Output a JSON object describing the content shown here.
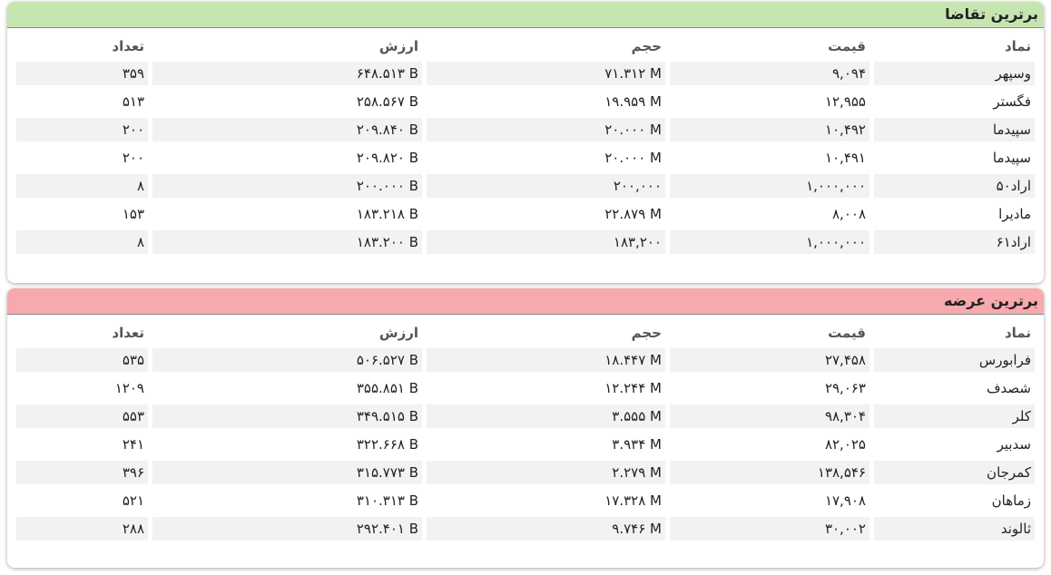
{
  "panels": [
    {
      "title": "برترین تقاضا",
      "headers": [
        "نماد",
        "قیمت",
        "حجم",
        "ارزش",
        "تعداد"
      ],
      "rows": [
        [
          "وسپهر",
          "۹,۰۹۴",
          "۷۱.۳۱۲ M",
          "۶۴۸.۵۱۳ B",
          "۳۵۹"
        ],
        [
          "فگستر",
          "۱۲,۹۵۵",
          "۱۹.۹۵۹ M",
          "۲۵۸.۵۶۷ B",
          "۵۱۳"
        ],
        [
          "سپیدما",
          "۱۰,۴۹۲",
          "۲۰.۰۰۰ M",
          "۲۰۹.۸۴۰ B",
          "۲۰۰"
        ],
        [
          "سپیدما",
          "۱۰,۴۹۱",
          "۲۰.۰۰۰ M",
          "۲۰۹.۸۲۰ B",
          "۲۰۰"
        ],
        [
          "اراد۵۰",
          "۱,۰۰۰,۰۰۰",
          "۲۰۰,۰۰۰",
          "۲۰۰.۰۰۰ B",
          "۸"
        ],
        [
          "مادیرا",
          "۸,۰۰۸",
          "۲۲.۸۷۹ M",
          "۱۸۳.۲۱۸ B",
          "۱۵۳"
        ],
        [
          "اراد۶۱",
          "۱,۰۰۰,۰۰۰",
          "۱۸۳,۲۰۰",
          "۱۸۳.۲۰۰ B",
          "۸"
        ]
      ]
    },
    {
      "title": "برترین عرضه",
      "headers": [
        "نماد",
        "قیمت",
        "حجم",
        "ارزش",
        "تعداد"
      ],
      "rows": [
        [
          "فرابورس",
          "۲۷,۴۵۸",
          "۱۸.۴۴۷ M",
          "۵۰۶.۵۲۷ B",
          "۵۳۵"
        ],
        [
          "شصدف",
          "۲۹,۰۶۳",
          "۱۲.۲۴۴ M",
          "۳۵۵.۸۵۱ B",
          "۱۲۰۹"
        ],
        [
          "کلر",
          "۹۸,۳۰۴",
          "۳.۵۵۵ M",
          "۳۴۹.۵۱۵ B",
          "۵۵۳"
        ],
        [
          "سدبیر",
          "۸۲,۰۲۵",
          "۳.۹۳۴ M",
          "۳۲۲.۶۶۸ B",
          "۲۴۱"
        ],
        [
          "کمرجان",
          "۱۳۸,۵۴۶",
          "۲.۲۷۹ M",
          "۳۱۵.۷۷۳ B",
          "۳۹۶"
        ],
        [
          "زماهان",
          "۱۷,۹۰۸",
          "۱۷.۳۲۸ M",
          "۳۱۰.۳۱۳ B",
          "۵۲۱"
        ],
        [
          "ثالوند",
          "۳۰,۰۰۲",
          "۹.۷۴۶ M",
          "۲۹۲.۴۰۱ B",
          "۲۸۸"
        ]
      ]
    }
  ]
}
